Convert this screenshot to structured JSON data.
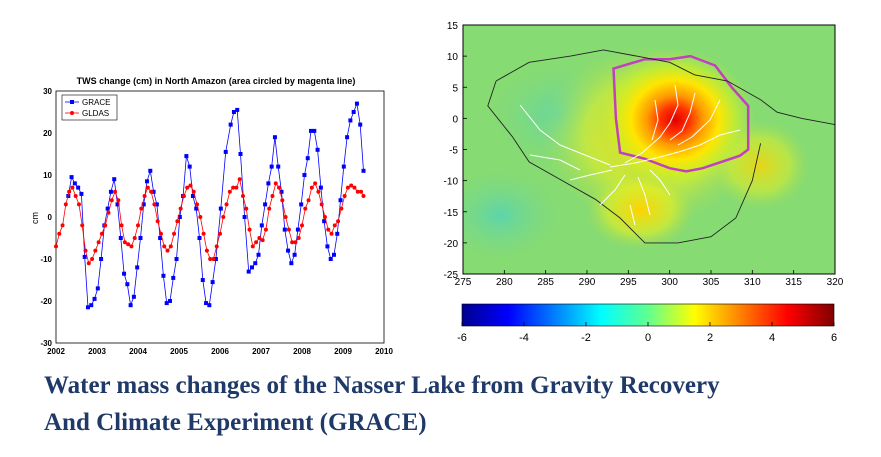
{
  "caption": {
    "line1": "Water mass changes of the Nasser Lake from Gravity Recovery",
    "line2": "And Climate Experiment (GRACE)"
  },
  "chart_data": [
    {
      "type": "line",
      "title": "TWS change (cm) in North Amazon (area circled by magenta line)",
      "ylabel": "cm",
      "xlabel": "",
      "xlim": [
        2002,
        2010
      ],
      "ylim": [
        -30,
        30
      ],
      "x_ticks": [
        "2002",
        "2003",
        "2004",
        "2005",
        "2006",
        "2007",
        "2008",
        "2009",
        "2010"
      ],
      "y_ticks": [
        "30",
        "20",
        "10",
        "0",
        "-10",
        "-20",
        "-30"
      ],
      "grid": true,
      "legend_position": "top-left",
      "series": [
        {
          "name": "GRACE",
          "color": "#0000ff",
          "marker": "square",
          "points": [
            [
              2002.3,
              5
            ],
            [
              2002.38,
              9.5
            ],
            [
              2002.46,
              8
            ],
            [
              2002.54,
              7
            ],
            [
              2002.62,
              5.5
            ],
            [
              2002.7,
              -9.5
            ],
            [
              2002.78,
              -21.5
            ],
            [
              2002.86,
              -21
            ],
            [
              2002.94,
              -19.5
            ],
            [
              2003.02,
              -17
            ],
            [
              2003.1,
              -10
            ],
            [
              2003.18,
              -2
            ],
            [
              2003.26,
              2
            ],
            [
              2003.34,
              6
            ],
            [
              2003.42,
              9
            ],
            [
              2003.5,
              3
            ],
            [
              2003.58,
              -5
            ],
            [
              2003.66,
              -13.5
            ],
            [
              2003.74,
              -16
            ],
            [
              2003.82,
              -21
            ],
            [
              2003.9,
              -19
            ],
            [
              2003.98,
              -12
            ],
            [
              2004.06,
              -5
            ],
            [
              2004.14,
              3
            ],
            [
              2004.22,
              8.5
            ],
            [
              2004.3,
              11
            ],
            [
              2004.38,
              6
            ],
            [
              2004.46,
              3
            ],
            [
              2004.54,
              -5
            ],
            [
              2004.62,
              -14
            ],
            [
              2004.7,
              -20.5
            ],
            [
              2004.78,
              -20
            ],
            [
              2004.86,
              -14.5
            ],
            [
              2004.94,
              -10
            ],
            [
              2005.02,
              0
            ],
            [
              2005.1,
              5
            ],
            [
              2005.18,
              14.5
            ],
            [
              2005.26,
              12
            ],
            [
              2005.34,
              5
            ],
            [
              2005.42,
              2
            ],
            [
              2005.5,
              -5
            ],
            [
              2005.58,
              -15
            ],
            [
              2005.66,
              -20.5
            ],
            [
              2005.74,
              -21
            ],
            [
              2005.82,
              -15.5
            ],
            [
              2005.9,
              -10
            ],
            [
              2006.02,
              2
            ],
            [
              2006.14,
              15.5
            ],
            [
              2006.26,
              22
            ],
            [
              2006.34,
              25
            ],
            [
              2006.42,
              25.5
            ],
            [
              2006.5,
              15
            ],
            [
              2006.6,
              0
            ],
            [
              2006.7,
              -13
            ],
            [
              2006.78,
              -12
            ],
            [
              2006.86,
              -11
            ],
            [
              2006.94,
              -9
            ],
            [
              2007.02,
              -2
            ],
            [
              2007.1,
              3
            ],
            [
              2007.18,
              8
            ],
            [
              2007.26,
              12
            ],
            [
              2007.34,
              19
            ],
            [
              2007.42,
              12
            ],
            [
              2007.5,
              6
            ],
            [
              2007.58,
              -3
            ],
            [
              2007.66,
              -8
            ],
            [
              2007.74,
              -11
            ],
            [
              2007.82,
              -9
            ],
            [
              2007.9,
              -3
            ],
            [
              2007.98,
              3
            ],
            [
              2008.06,
              10
            ],
            [
              2008.14,
              14
            ],
            [
              2008.22,
              20.5
            ],
            [
              2008.3,
              20.5
            ],
            [
              2008.38,
              16
            ],
            [
              2008.46,
              7
            ],
            [
              2008.54,
              -1
            ],
            [
              2008.62,
              -7
            ],
            [
              2008.7,
              -10
            ],
            [
              2008.78,
              -9
            ],
            [
              2008.86,
              -4
            ],
            [
              2008.94,
              4
            ],
            [
              2009.02,
              12
            ],
            [
              2009.1,
              19
            ],
            [
              2009.18,
              23
            ],
            [
              2009.26,
              25
            ],
            [
              2009.34,
              27
            ],
            [
              2009.42,
              22
            ],
            [
              2009.5,
              11
            ]
          ]
        },
        {
          "name": "GLDAS",
          "color": "#ff0000",
          "marker": "dot",
          "points": [
            [
              2002.0,
              -7
            ],
            [
              2002.08,
              -4
            ],
            [
              2002.16,
              -2
            ],
            [
              2002.24,
              3
            ],
            [
              2002.32,
              6
            ],
            [
              2002.4,
              7
            ],
            [
              2002.48,
              5
            ],
            [
              2002.56,
              3
            ],
            [
              2002.64,
              -2
            ],
            [
              2002.72,
              -8
            ],
            [
              2002.8,
              -11
            ],
            [
              2002.88,
              -10
            ],
            [
              2002.96,
              -8
            ],
            [
              2003.04,
              -6
            ],
            [
              2003.12,
              -4
            ],
            [
              2003.2,
              -2
            ],
            [
              2003.28,
              1
            ],
            [
              2003.36,
              4
            ],
            [
              2003.44,
              6
            ],
            [
              2003.52,
              4
            ],
            [
              2003.6,
              -2
            ],
            [
              2003.68,
              -6
            ],
            [
              2003.76,
              -6.5
            ],
            [
              2003.84,
              -7
            ],
            [
              2003.92,
              -5
            ],
            [
              2004.0,
              -2
            ],
            [
              2004.08,
              2
            ],
            [
              2004.16,
              5
            ],
            [
              2004.24,
              7
            ],
            [
              2004.32,
              6
            ],
            [
              2004.4,
              3
            ],
            [
              2004.48,
              -1
            ],
            [
              2004.56,
              -4
            ],
            [
              2004.64,
              -7
            ],
            [
              2004.72,
              -8
            ],
            [
              2004.8,
              -7
            ],
            [
              2004.88,
              -4
            ],
            [
              2004.96,
              -1
            ],
            [
              2005.04,
              2
            ],
            [
              2005.12,
              5
            ],
            [
              2005.2,
              7
            ],
            [
              2005.28,
              7.5
            ],
            [
              2005.36,
              6
            ],
            [
              2005.44,
              3
            ],
            [
              2005.52,
              0
            ],
            [
              2005.6,
              -4
            ],
            [
              2005.68,
              -8
            ],
            [
              2005.76,
              -10
            ],
            [
              2005.84,
              -10
            ],
            [
              2005.92,
              -7
            ],
            [
              2006.0,
              -4
            ],
            [
              2006.08,
              0
            ],
            [
              2006.16,
              3
            ],
            [
              2006.24,
              6
            ],
            [
              2006.32,
              7
            ],
            [
              2006.4,
              7
            ],
            [
              2006.48,
              9
            ],
            [
              2006.56,
              5
            ],
            [
              2006.64,
              2
            ],
            [
              2006.72,
              -3
            ],
            [
              2006.8,
              -7
            ],
            [
              2006.88,
              -6
            ],
            [
              2006.96,
              -5
            ],
            [
              2007.04,
              -5.5
            ],
            [
              2007.12,
              -3
            ],
            [
              2007.2,
              2
            ],
            [
              2007.28,
              5
            ],
            [
              2007.36,
              8
            ],
            [
              2007.44,
              7
            ],
            [
              2007.52,
              4
            ],
            [
              2007.6,
              0
            ],
            [
              2007.68,
              -3
            ],
            [
              2007.76,
              -6
            ],
            [
              2007.84,
              -6
            ],
            [
              2007.92,
              -5
            ],
            [
              2008.0,
              -2
            ],
            [
              2008.08,
              2
            ],
            [
              2008.16,
              4
            ],
            [
              2008.24,
              7
            ],
            [
              2008.32,
              8
            ],
            [
              2008.4,
              6
            ],
            [
              2008.48,
              3
            ],
            [
              2008.56,
              0
            ],
            [
              2008.64,
              -3
            ],
            [
              2008.72,
              -4
            ],
            [
              2008.8,
              -2
            ],
            [
              2008.88,
              -1
            ],
            [
              2008.96,
              2
            ],
            [
              2009.04,
              5
            ],
            [
              2009.12,
              7
            ],
            [
              2009.2,
              7.5
            ],
            [
              2009.28,
              7
            ],
            [
              2009.36,
              6
            ],
            [
              2009.44,
              6
            ],
            [
              2009.5,
              5
            ]
          ]
        }
      ]
    },
    {
      "type": "heatmap",
      "x_ticks": [
        "275",
        "280",
        "285",
        "290",
        "295",
        "300",
        "305",
        "310",
        "315",
        "320"
      ],
      "y_ticks": [
        "15",
        "10",
        "5",
        "0",
        "-5",
        "-10",
        "-15",
        "-20",
        "-25"
      ],
      "xlim": [
        275,
        320
      ],
      "ylim": [
        -25,
        15
      ],
      "colormap": "jet",
      "clim": [
        -6,
        6
      ],
      "colorbar_ticks": [
        "-6",
        "-4",
        "-2",
        "0",
        "2",
        "4",
        "6"
      ],
      "anomaly_center": [
        301,
        -1
      ],
      "anomaly_peak": 6,
      "outline_color": "#c040c0",
      "region_polygon": [
        [
          293.2,
          8
        ],
        [
          297,
          9.5
        ],
        [
          300,
          9.5
        ],
        [
          302.5,
          10
        ],
        [
          305.5,
          8.5
        ],
        [
          307.5,
          5
        ],
        [
          309.5,
          2
        ],
        [
          309.5,
          -5
        ],
        [
          308.5,
          -6
        ],
        [
          304,
          -8
        ],
        [
          302,
          -8.5
        ],
        [
          300,
          -8
        ],
        [
          297,
          -6.5
        ],
        [
          294,
          -5.5
        ],
        [
          293.5,
          0
        ]
      ]
    }
  ]
}
